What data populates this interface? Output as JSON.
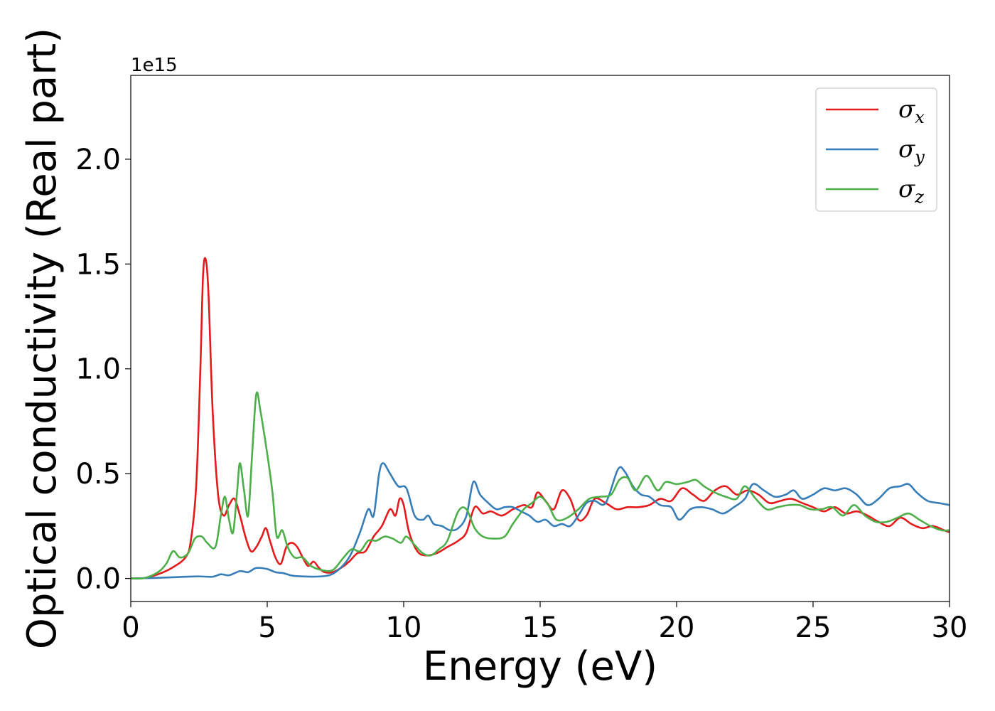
{
  "chart_data": {
    "type": "line",
    "xlabel": "Energy (eV)",
    "ylabel": "Optical conductivity (Real part)",
    "y_offset_text": "1e15",
    "xlim": [
      0,
      30
    ],
    "ylim": [
      -0.11,
      2.4
    ],
    "xticks": [
      0,
      5,
      10,
      15,
      20,
      25,
      30
    ],
    "xtick_labels": [
      "0",
      "5",
      "10",
      "15",
      "20",
      "25",
      "30"
    ],
    "yticks": [
      0.0,
      0.5,
      1.0,
      1.5,
      2.0
    ],
    "ytick_labels": [
      "0.0",
      "0.5",
      "1.0",
      "1.5",
      "2.0"
    ],
    "grid": false,
    "legend_position": "top-right",
    "series": [
      {
        "name": "σx",
        "symbol": "σ",
        "subscript": "x",
        "color": "#e41a1c",
        "points": [
          [
            0,
            0
          ],
          [
            0.5,
            0.002
          ],
          [
            1,
            0.02
          ],
          [
            1.5,
            0.05
          ],
          [
            2,
            0.1
          ],
          [
            2.2,
            0.18
          ],
          [
            2.4,
            0.45
          ],
          [
            2.55,
            1.0
          ],
          [
            2.65,
            1.45
          ],
          [
            2.75,
            1.52
          ],
          [
            2.85,
            1.35
          ],
          [
            3.0,
            0.8
          ],
          [
            3.2,
            0.4
          ],
          [
            3.4,
            0.3
          ],
          [
            3.6,
            0.35
          ],
          [
            3.8,
            0.38
          ],
          [
            4.0,
            0.3
          ],
          [
            4.2,
            0.2
          ],
          [
            4.4,
            0.13
          ],
          [
            4.6,
            0.15
          ],
          [
            4.8,
            0.2
          ],
          [
            4.95,
            0.24
          ],
          [
            5.1,
            0.18
          ],
          [
            5.3,
            0.1
          ],
          [
            5.5,
            0.07
          ],
          [
            5.7,
            0.15
          ],
          [
            5.9,
            0.17
          ],
          [
            6.1,
            0.15
          ],
          [
            6.3,
            0.1
          ],
          [
            6.5,
            0.06
          ],
          [
            6.7,
            0.08
          ],
          [
            6.9,
            0.05
          ],
          [
            7.1,
            0.03
          ],
          [
            7.4,
            0.03
          ],
          [
            7.7,
            0.05
          ],
          [
            8.0,
            0.08
          ],
          [
            8.3,
            0.12
          ],
          [
            8.6,
            0.13
          ],
          [
            8.9,
            0.2
          ],
          [
            9.2,
            0.25
          ],
          [
            9.5,
            0.33
          ],
          [
            9.7,
            0.3
          ],
          [
            9.85,
            0.38
          ],
          [
            10.0,
            0.35
          ],
          [
            10.2,
            0.22
          ],
          [
            10.5,
            0.13
          ],
          [
            10.8,
            0.11
          ],
          [
            11.2,
            0.12
          ],
          [
            11.6,
            0.15
          ],
          [
            12.0,
            0.18
          ],
          [
            12.3,
            0.22
          ],
          [
            12.6,
            0.34
          ],
          [
            12.9,
            0.31
          ],
          [
            13.2,
            0.32
          ],
          [
            13.6,
            0.3
          ],
          [
            14.0,
            0.33
          ],
          [
            14.4,
            0.35
          ],
          [
            14.7,
            0.34
          ],
          [
            14.9,
            0.41
          ],
          [
            15.2,
            0.37
          ],
          [
            15.5,
            0.33
          ],
          [
            15.8,
            0.42
          ],
          [
            16.1,
            0.38
          ],
          [
            16.4,
            0.28
          ],
          [
            16.7,
            0.3
          ],
          [
            17.0,
            0.38
          ],
          [
            17.4,
            0.36
          ],
          [
            17.8,
            0.33
          ],
          [
            18.2,
            0.34
          ],
          [
            18.6,
            0.34
          ],
          [
            19.0,
            0.35
          ],
          [
            19.4,
            0.38
          ],
          [
            19.8,
            0.37
          ],
          [
            20.2,
            0.43
          ],
          [
            20.6,
            0.4
          ],
          [
            21.0,
            0.37
          ],
          [
            21.4,
            0.42
          ],
          [
            21.8,
            0.44
          ],
          [
            22.2,
            0.4
          ],
          [
            22.6,
            0.42
          ],
          [
            23.0,
            0.4
          ],
          [
            23.4,
            0.36
          ],
          [
            23.8,
            0.37
          ],
          [
            24.2,
            0.38
          ],
          [
            24.6,
            0.36
          ],
          [
            25.0,
            0.34
          ],
          [
            25.4,
            0.32
          ],
          [
            25.8,
            0.34
          ],
          [
            26.2,
            0.31
          ],
          [
            26.6,
            0.32
          ],
          [
            27.0,
            0.3
          ],
          [
            27.4,
            0.27
          ],
          [
            27.8,
            0.25
          ],
          [
            28.2,
            0.29
          ],
          [
            28.6,
            0.26
          ],
          [
            29.0,
            0.24
          ],
          [
            29.4,
            0.25
          ],
          [
            29.8,
            0.23
          ],
          [
            30.0,
            0.22
          ]
        ]
      },
      {
        "name": "σy",
        "symbol": "σ",
        "subscript": "y",
        "color": "#377eb8",
        "points": [
          [
            0,
            0
          ],
          [
            1,
            0.003
          ],
          [
            2,
            0.008
          ],
          [
            2.5,
            0.01
          ],
          [
            3,
            0.008
          ],
          [
            3.3,
            0.02
          ],
          [
            3.6,
            0.015
          ],
          [
            4.0,
            0.035
          ],
          [
            4.3,
            0.03
          ],
          [
            4.6,
            0.05
          ],
          [
            5.0,
            0.045
          ],
          [
            5.3,
            0.03
          ],
          [
            5.6,
            0.025
          ],
          [
            6.0,
            0.012
          ],
          [
            7.0,
            0.01
          ],
          [
            7.5,
            0.03
          ],
          [
            8.0,
            0.1
          ],
          [
            8.4,
            0.22
          ],
          [
            8.7,
            0.33
          ],
          [
            8.9,
            0.3
          ],
          [
            9.1,
            0.5
          ],
          [
            9.25,
            0.55
          ],
          [
            9.5,
            0.5
          ],
          [
            9.8,
            0.44
          ],
          [
            10.1,
            0.43
          ],
          [
            10.4,
            0.3
          ],
          [
            10.7,
            0.28
          ],
          [
            10.9,
            0.3
          ],
          [
            11.1,
            0.26
          ],
          [
            11.4,
            0.25
          ],
          [
            11.7,
            0.23
          ],
          [
            12.0,
            0.24
          ],
          [
            12.3,
            0.3
          ],
          [
            12.55,
            0.46
          ],
          [
            12.8,
            0.4
          ],
          [
            13.1,
            0.36
          ],
          [
            13.4,
            0.33
          ],
          [
            13.7,
            0.34
          ],
          [
            14.0,
            0.34
          ],
          [
            14.3,
            0.32
          ],
          [
            14.6,
            0.3
          ],
          [
            14.9,
            0.27
          ],
          [
            15.2,
            0.28
          ],
          [
            15.5,
            0.25
          ],
          [
            15.8,
            0.26
          ],
          [
            16.1,
            0.25
          ],
          [
            16.4,
            0.3
          ],
          [
            16.7,
            0.36
          ],
          [
            17.0,
            0.37
          ],
          [
            17.4,
            0.36
          ],
          [
            17.85,
            0.52
          ],
          [
            18.1,
            0.51
          ],
          [
            18.4,
            0.44
          ],
          [
            18.7,
            0.4
          ],
          [
            19.0,
            0.39
          ],
          [
            19.4,
            0.35
          ],
          [
            19.8,
            0.34
          ],
          [
            20.1,
            0.28
          ],
          [
            20.5,
            0.33
          ],
          [
            20.9,
            0.34
          ],
          [
            21.3,
            0.33
          ],
          [
            21.7,
            0.31
          ],
          [
            22.1,
            0.34
          ],
          [
            22.5,
            0.38
          ],
          [
            22.8,
            0.45
          ],
          [
            23.2,
            0.42
          ],
          [
            23.6,
            0.39
          ],
          [
            24.0,
            0.4
          ],
          [
            24.3,
            0.42
          ],
          [
            24.6,
            0.38
          ],
          [
            25.0,
            0.4
          ],
          [
            25.4,
            0.43
          ],
          [
            25.8,
            0.42
          ],
          [
            26.2,
            0.43
          ],
          [
            26.6,
            0.4
          ],
          [
            27.0,
            0.35
          ],
          [
            27.4,
            0.38
          ],
          [
            27.8,
            0.43
          ],
          [
            28.2,
            0.44
          ],
          [
            28.5,
            0.45
          ],
          [
            28.8,
            0.41
          ],
          [
            29.2,
            0.37
          ],
          [
            29.6,
            0.36
          ],
          [
            30.0,
            0.35
          ]
        ]
      },
      {
        "name": "σz",
        "symbol": "σ",
        "subscript": "z",
        "color": "#4daf4a",
        "points": [
          [
            0,
            0
          ],
          [
            0.5,
            0.002
          ],
          [
            1,
            0.03
          ],
          [
            1.3,
            0.07
          ],
          [
            1.55,
            0.13
          ],
          [
            1.8,
            0.1
          ],
          [
            2.1,
            0.12
          ],
          [
            2.35,
            0.19
          ],
          [
            2.6,
            0.2
          ],
          [
            2.8,
            0.17
          ],
          [
            3.1,
            0.15
          ],
          [
            3.3,
            0.3
          ],
          [
            3.45,
            0.39
          ],
          [
            3.6,
            0.28
          ],
          [
            3.75,
            0.22
          ],
          [
            3.9,
            0.42
          ],
          [
            4.0,
            0.55
          ],
          [
            4.15,
            0.42
          ],
          [
            4.3,
            0.3
          ],
          [
            4.45,
            0.6
          ],
          [
            4.6,
            0.88
          ],
          [
            4.75,
            0.8
          ],
          [
            4.9,
            0.68
          ],
          [
            5.05,
            0.55
          ],
          [
            5.2,
            0.4
          ],
          [
            5.35,
            0.2
          ],
          [
            5.55,
            0.23
          ],
          [
            5.75,
            0.15
          ],
          [
            6.0,
            0.1
          ],
          [
            6.3,
            0.1
          ],
          [
            6.6,
            0.06
          ],
          [
            7.0,
            0.04
          ],
          [
            7.4,
            0.04
          ],
          [
            7.8,
            0.1
          ],
          [
            8.1,
            0.14
          ],
          [
            8.4,
            0.13
          ],
          [
            8.7,
            0.18
          ],
          [
            9.0,
            0.18
          ],
          [
            9.3,
            0.2
          ],
          [
            9.6,
            0.19
          ],
          [
            9.9,
            0.17
          ],
          [
            10.1,
            0.2
          ],
          [
            10.4,
            0.16
          ],
          [
            10.7,
            0.12
          ],
          [
            11.0,
            0.11
          ],
          [
            11.3,
            0.14
          ],
          [
            11.6,
            0.18
          ],
          [
            12.0,
            0.32
          ],
          [
            12.3,
            0.33
          ],
          [
            12.6,
            0.24
          ],
          [
            12.9,
            0.2
          ],
          [
            13.3,
            0.19
          ],
          [
            13.7,
            0.2
          ],
          [
            14.0,
            0.26
          ],
          [
            14.4,
            0.33
          ],
          [
            14.7,
            0.36
          ],
          [
            15.0,
            0.39
          ],
          [
            15.3,
            0.35
          ],
          [
            15.6,
            0.28
          ],
          [
            16.0,
            0.29
          ],
          [
            16.4,
            0.33
          ],
          [
            16.8,
            0.38
          ],
          [
            17.2,
            0.39
          ],
          [
            17.6,
            0.4
          ],
          [
            17.9,
            0.47
          ],
          [
            18.2,
            0.48
          ],
          [
            18.5,
            0.42
          ],
          [
            18.9,
            0.49
          ],
          [
            19.3,
            0.42
          ],
          [
            19.6,
            0.46
          ],
          [
            20.0,
            0.45
          ],
          [
            20.4,
            0.46
          ],
          [
            20.7,
            0.47
          ],
          [
            21.0,
            0.44
          ],
          [
            21.4,
            0.41
          ],
          [
            21.8,
            0.39
          ],
          [
            22.2,
            0.38
          ],
          [
            22.5,
            0.44
          ],
          [
            22.9,
            0.38
          ],
          [
            23.3,
            0.33
          ],
          [
            23.7,
            0.34
          ],
          [
            24.1,
            0.35
          ],
          [
            24.5,
            0.35
          ],
          [
            24.9,
            0.33
          ],
          [
            25.3,
            0.33
          ],
          [
            25.7,
            0.34
          ],
          [
            26.1,
            0.3
          ],
          [
            26.5,
            0.35
          ],
          [
            26.9,
            0.3
          ],
          [
            27.3,
            0.27
          ],
          [
            27.7,
            0.27
          ],
          [
            28.1,
            0.29
          ],
          [
            28.5,
            0.31
          ],
          [
            28.9,
            0.28
          ],
          [
            29.3,
            0.25
          ],
          [
            29.7,
            0.23
          ],
          [
            30.0,
            0.23
          ]
        ]
      }
    ]
  }
}
